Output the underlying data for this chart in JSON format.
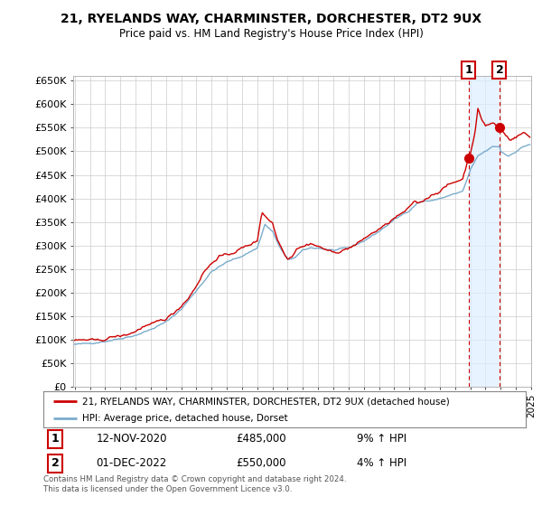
{
  "title": "21, RYELANDS WAY, CHARMINSTER, DORCHESTER, DT2 9UX",
  "subtitle": "Price paid vs. HM Land Registry's House Price Index (HPI)",
  "legend_line1": "21, RYELANDS WAY, CHARMINSTER, DORCHESTER, DT2 9UX (detached house)",
  "legend_line2": "HPI: Average price, detached house, Dorset",
  "annotation1_date": "12-NOV-2020",
  "annotation1_price": "£485,000",
  "annotation1_hpi": "9% ↑ HPI",
  "annotation2_date": "01-DEC-2022",
  "annotation2_price": "£550,000",
  "annotation2_hpi": "4% ↑ HPI",
  "footer": "Contains HM Land Registry data © Crown copyright and database right 2024.\nThis data is licensed under the Open Government Licence v3.0.",
  "red_color": "#cc0000",
  "blue_color": "#7aaccc",
  "shade_color": "#ddeeff",
  "background_color": "#ffffff",
  "grid_color": "#cccccc",
  "sale1_x": 2020.875,
  "sale1_y": 485000,
  "sale2_x": 2022.917,
  "sale2_y": 550000,
  "ylim": [
    0,
    660000
  ],
  "yticks": [
    0,
    50000,
    100000,
    150000,
    200000,
    250000,
    300000,
    350000,
    400000,
    450000,
    500000,
    550000,
    600000,
    650000
  ],
  "ytick_labels": [
    "£0",
    "£50K",
    "£100K",
    "£150K",
    "£200K",
    "£250K",
    "£300K",
    "£350K",
    "£400K",
    "£450K",
    "£500K",
    "£550K",
    "£600K",
    "£650K"
  ],
  "xmin": 1995,
  "xmax": 2025
}
